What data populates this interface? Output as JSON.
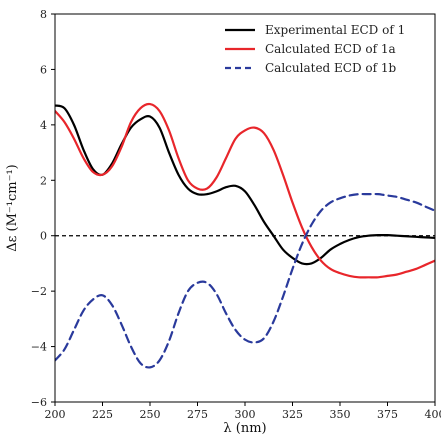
{
  "chart_data": {
    "type": "line",
    "xlabel": "λ (nm)",
    "ylabel": "Δε (M⁻¹cm⁻¹)",
    "xlim": [
      200,
      400
    ],
    "ylim": [
      -6,
      8
    ],
    "xticks": [
      "200",
      "225",
      "250",
      "275",
      "300",
      "325",
      "350",
      "375",
      "400"
    ],
    "yticks": [
      "−6",
      "−4",
      "−2",
      "0",
      "2",
      "4",
      "6",
      "8"
    ],
    "grid": false,
    "legend_position": "top-right",
    "zero_line": {
      "y": 0,
      "style": "dashed",
      "color": "#000000"
    },
    "series": [
      {
        "name": "Experimental ECD of 1",
        "color": "#000000",
        "style": "solid",
        "x": [
          200,
          205,
          210,
          215,
          220,
          225,
          230,
          235,
          240,
          245,
          250,
          255,
          260,
          265,
          270,
          275,
          280,
          285,
          290,
          295,
          300,
          305,
          310,
          315,
          320,
          325,
          330,
          335,
          340,
          345,
          350,
          355,
          360,
          365,
          370,
          375,
          380,
          385,
          390,
          395,
          400
        ],
        "y": [
          4.7,
          4.6,
          4.0,
          3.1,
          2.4,
          2.2,
          2.6,
          3.3,
          3.9,
          4.2,
          4.3,
          3.9,
          3.0,
          2.2,
          1.7,
          1.5,
          1.5,
          1.6,
          1.75,
          1.8,
          1.6,
          1.1,
          0.5,
          0.0,
          -0.5,
          -0.8,
          -1.0,
          -1.0,
          -0.8,
          -0.5,
          -0.3,
          -0.15,
          -0.05,
          0.0,
          0.02,
          0.02,
          0.0,
          -0.02,
          -0.04,
          -0.06,
          -0.08
        ]
      },
      {
        "name": "Calculated ECD of 1a",
        "color": "#e8262b",
        "style": "solid",
        "x": [
          200,
          205,
          210,
          215,
          220,
          225,
          230,
          235,
          240,
          245,
          250,
          255,
          260,
          265,
          270,
          275,
          280,
          285,
          290,
          295,
          300,
          305,
          310,
          315,
          320,
          325,
          330,
          335,
          340,
          345,
          350,
          355,
          360,
          365,
          370,
          375,
          380,
          385,
          390,
          395,
          400
        ],
        "y": [
          4.5,
          4.1,
          3.5,
          2.8,
          2.3,
          2.2,
          2.5,
          3.2,
          4.1,
          4.6,
          4.75,
          4.5,
          3.8,
          2.8,
          2.0,
          1.7,
          1.7,
          2.1,
          2.8,
          3.5,
          3.8,
          3.9,
          3.7,
          3.1,
          2.2,
          1.2,
          0.3,
          -0.4,
          -0.9,
          -1.2,
          -1.35,
          -1.45,
          -1.5,
          -1.5,
          -1.5,
          -1.45,
          -1.4,
          -1.3,
          -1.2,
          -1.05,
          -0.9
        ]
      },
      {
        "name": "Calculated ECD of 1b",
        "color": "#2a3a9c",
        "style": "dashed",
        "x": [
          200,
          205,
          210,
          215,
          220,
          225,
          230,
          235,
          240,
          245,
          250,
          255,
          260,
          265,
          270,
          275,
          280,
          285,
          290,
          295,
          300,
          305,
          310,
          315,
          320,
          325,
          330,
          335,
          340,
          345,
          350,
          355,
          360,
          365,
          370,
          375,
          380,
          385,
          390,
          395,
          400
        ],
        "y": [
          -4.5,
          -4.1,
          -3.4,
          -2.7,
          -2.3,
          -2.15,
          -2.5,
          -3.2,
          -4.0,
          -4.6,
          -4.75,
          -4.5,
          -3.8,
          -2.8,
          -2.0,
          -1.7,
          -1.7,
          -2.1,
          -2.8,
          -3.4,
          -3.75,
          -3.85,
          -3.7,
          -3.1,
          -2.2,
          -1.2,
          -0.3,
          0.4,
          0.9,
          1.2,
          1.35,
          1.45,
          1.5,
          1.5,
          1.5,
          1.45,
          1.4,
          1.3,
          1.2,
          1.05,
          0.9
        ]
      }
    ]
  }
}
